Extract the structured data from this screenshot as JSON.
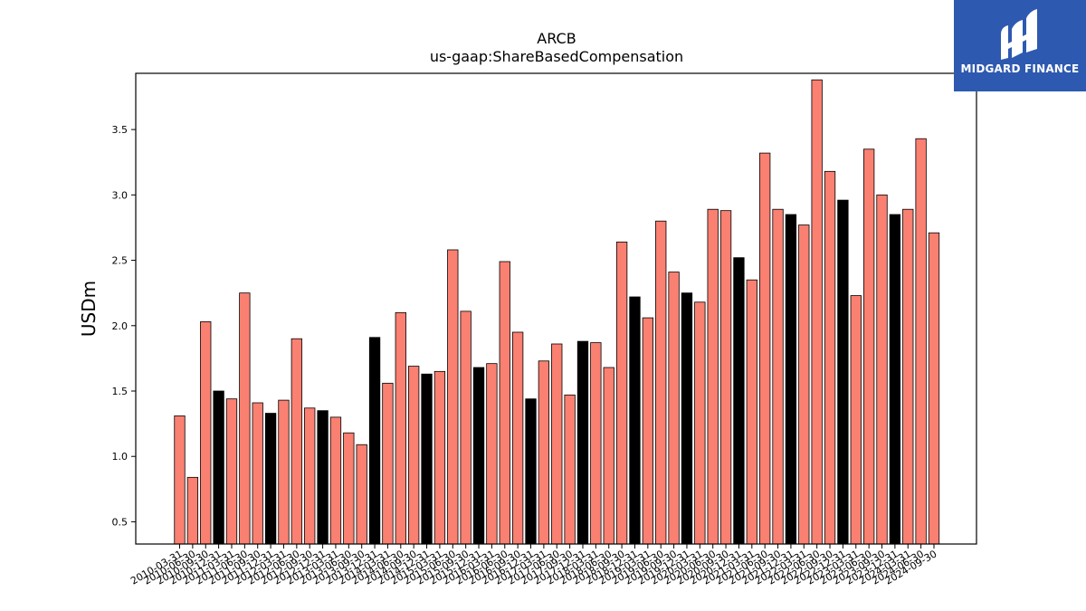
{
  "chart_data": {
    "type": "bar",
    "title": "ARCB",
    "subtitle": "us-gaap:ShareBasedCompensation",
    "xlabel": "",
    "ylabel": "USDm",
    "ylim": [
      0.33,
      3.93
    ],
    "yticks": [
      "0.5",
      "1.0",
      "1.5",
      "2.0",
      "2.5",
      "3.0",
      "3.5"
    ],
    "grid": false,
    "colors": {
      "quarter": "#fa8072",
      "annual": "#000000",
      "edge": "#000000"
    },
    "categories": [
      "2010-03-31",
      "2010-06-30",
      "2010-09-30",
      "2010-12-31",
      "2011-03-31",
      "2011-06-30",
      "2011-09-30",
      "2011-12-31",
      "2012-03-31",
      "2012-06-30",
      "2012-09-30",
      "2012-12-31",
      "2013-03-31",
      "2013-06-30",
      "2013-09-30",
      "2013-12-31",
      "2014-03-31",
      "2014-06-30",
      "2014-09-30",
      "2014-12-31",
      "2015-03-31",
      "2015-06-30",
      "2015-09-30",
      "2015-12-31",
      "2016-03-31",
      "2016-06-30",
      "2016-09-30",
      "2016-12-31",
      "2017-03-31",
      "2017-06-30",
      "2017-09-30",
      "2017-12-31",
      "2018-03-31",
      "2018-06-30",
      "2018-09-30",
      "2018-12-31",
      "2019-03-31",
      "2019-06-30",
      "2019-09-30",
      "2019-12-31",
      "2020-03-31",
      "2020-06-30",
      "2020-09-30",
      "2020-12-31",
      "2021-03-31",
      "2021-06-30",
      "2021-09-30",
      "2021-12-31",
      "2022-03-31",
      "2022-06-30",
      "2022-09-30",
      "2022-12-31",
      "2023-03-31",
      "2023-06-30",
      "2023-09-30",
      "2023-12-31",
      "2024-03-31",
      "2024-06-30",
      "2024-09-30"
    ],
    "values": [
      1.31,
      0.84,
      2.03,
      1.5,
      1.44,
      2.25,
      1.41,
      1.33,
      1.43,
      1.9,
      1.37,
      1.35,
      1.3,
      1.18,
      1.09,
      1.91,
      1.56,
      2.1,
      1.69,
      1.63,
      1.65,
      2.58,
      2.11,
      1.68,
      1.71,
      2.49,
      1.95,
      1.44,
      1.73,
      1.86,
      1.47,
      1.88,
      1.87,
      1.68,
      2.64,
      2.22,
      2.06,
      2.8,
      2.41,
      2.25,
      2.18,
      2.89,
      2.88,
      2.52,
      2.35,
      3.32,
      2.89,
      2.85,
      2.77,
      3.88,
      3.18,
      2.96,
      2.23,
      3.35,
      3.0,
      2.85,
      2.89,
      3.43,
      2.71
    ],
    "annual_flags": [
      0,
      0,
      0,
      1,
      0,
      0,
      0,
      1,
      0,
      0,
      0,
      1,
      0,
      0,
      0,
      1,
      0,
      0,
      0,
      1,
      0,
      0,
      0,
      1,
      0,
      0,
      0,
      1,
      0,
      0,
      0,
      1,
      0,
      0,
      0,
      1,
      0,
      0,
      0,
      1,
      0,
      0,
      0,
      1,
      0,
      0,
      0,
      1,
      0,
      0,
      0,
      1,
      0,
      0,
      0,
      1,
      0,
      0,
      0
    ]
  },
  "logo": {
    "text": "MIDGARD FINANCE",
    "color": "#2e59b0"
  }
}
